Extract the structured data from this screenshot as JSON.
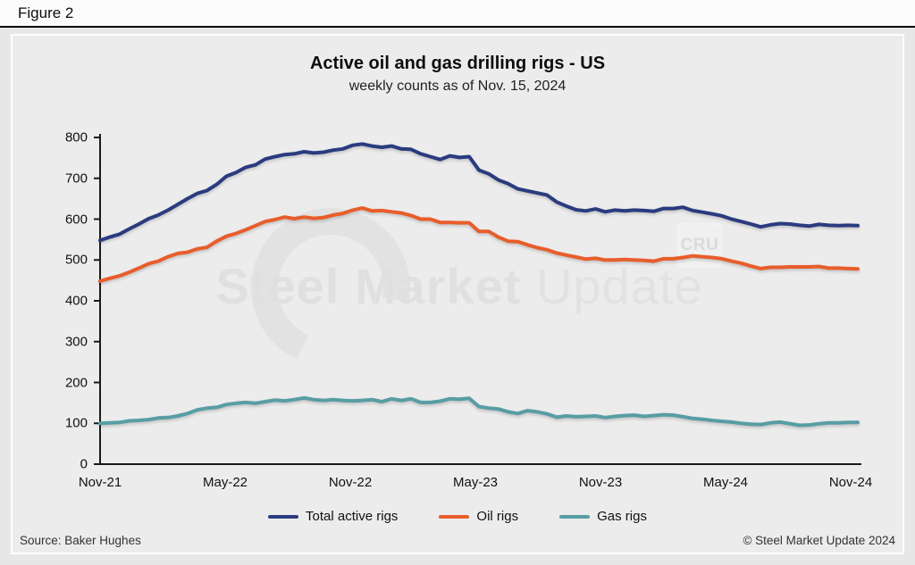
{
  "figure_label": "Figure 2",
  "title": "Active oil and gas drilling rigs - US",
  "subtitle": "weekly counts as of Nov. 15, 2024",
  "watermark": {
    "brand_bold": "Steel Market",
    "brand_light": " Update",
    "logo_text": "CRU"
  },
  "footer": {
    "source": "Source: Baker Hughes",
    "copyright": "© Steel Market Update 2024"
  },
  "colors": {
    "total": "#2a3b7f",
    "oil": "#e85d2b",
    "gas": "#589da4",
    "axis": "#1a1a1a",
    "panel_bg": "#ececec",
    "page_bg": "#e7e7e7",
    "watermark": "#e0e0e0"
  },
  "chart_data": {
    "type": "line",
    "title": "Active oil and gas drilling rigs - US",
    "subtitle": "weekly counts as of Nov. 15, 2024",
    "x_tick_labels": [
      "Nov-21",
      "May-22",
      "Nov-22",
      "May-23",
      "Nov-23",
      "May-24",
      "Nov-24"
    ],
    "x_range_note": "weekly observations from Nov 2021 to Nov 15 2024, sampled here biweekly",
    "y_ticks": [
      0,
      100,
      200,
      300,
      400,
      500,
      600,
      700,
      800
    ],
    "ylim": [
      0,
      800
    ],
    "grid": false,
    "legend_position": "bottom",
    "series": [
      {
        "name": "Total active rigs",
        "color": "#2a3b7f",
        "values": [
          548,
          556,
          563,
          576,
          588,
          601,
          610,
          622,
          636,
          650,
          663,
          670,
          685,
          705,
          714,
          727,
          733,
          747,
          753,
          758,
          760,
          765,
          762,
          764,
          769,
          772,
          781,
          784,
          779,
          776,
          779,
          772,
          771,
          760,
          753,
          746,
          755,
          751,
          753,
          720,
          711,
          696,
          687,
          674,
          669,
          664,
          659,
          642,
          632,
          623,
          620,
          625,
          618,
          622,
          620,
          622,
          621,
          619,
          626,
          626,
          629,
          621,
          617,
          613,
          608,
          600,
          594,
          588,
          581,
          586,
          589,
          588,
          585,
          583,
          587,
          585,
          584,
          585,
          584
        ]
      },
      {
        "name": "Oil rigs",
        "color": "#e85d2b",
        "values": [
          448,
          455,
          461,
          470,
          480,
          491,
          497,
          508,
          516,
          519,
          527,
          531,
          546,
          558,
          565,
          574,
          584,
          594,
          599,
          605,
          601,
          605,
          602,
          604,
          610,
          614,
          622,
          627,
          620,
          621,
          618,
          615,
          609,
          600,
          600,
          592,
          592,
          591,
          591,
          570,
          570,
          556,
          546,
          545,
          537,
          530,
          525,
          517,
          512,
          507,
          502,
          504,
          500,
          500,
          501,
          500,
          499,
          497,
          503,
          503,
          506,
          510,
          508,
          506,
          503,
          497,
          492,
          485,
          479,
          482,
          482,
          483,
          483,
          483,
          484,
          480,
          480,
          479,
          478
        ]
      },
      {
        "name": "Gas rigs",
        "color": "#589da4",
        "values": [
          100,
          101,
          102,
          106,
          107,
          109,
          113,
          114,
          118,
          124,
          133,
          137,
          139,
          146,
          149,
          151,
          149,
          153,
          157,
          155,
          158,
          162,
          158,
          156,
          158,
          156,
          155,
          156,
          158,
          153,
          160,
          156,
          160,
          151,
          151,
          154,
          160,
          159,
          161,
          141,
          137,
          135,
          128,
          124,
          131,
          128,
          123,
          115,
          118,
          116,
          117,
          118,
          114,
          117,
          119,
          120,
          117,
          119,
          121,
          120,
          116,
          112,
          110,
          107,
          105,
          103,
          100,
          98,
          97,
          101,
          103,
          99,
          95,
          96,
          99,
          101,
          101,
          102,
          102
        ]
      }
    ]
  }
}
